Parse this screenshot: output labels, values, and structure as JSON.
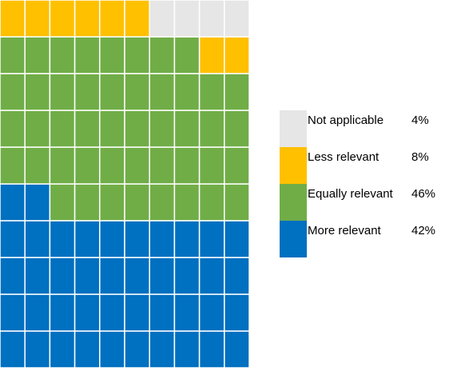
{
  "chart_data": {
    "type": "waffle",
    "grid": {
      "rows": 10,
      "cols": 10,
      "fill_order": "bottom-up, left-to-right within row"
    },
    "series": [
      {
        "name": "More relevant",
        "value": 42,
        "label": "42%",
        "color": "#0070C0"
      },
      {
        "name": "Equally relevant",
        "value": 46,
        "label": "46%",
        "color": "#70AD47"
      },
      {
        "name": "Less relevant",
        "value": 8,
        "label": "8%",
        "color": "#FFC000"
      },
      {
        "name": "Not applicable",
        "value": 4,
        "label": "4%",
        "color": "#E7E6E6"
      }
    ],
    "legend_order": [
      "Not applicable",
      "Less relevant",
      "Equally relevant",
      "More relevant"
    ],
    "legend_position": "right"
  }
}
